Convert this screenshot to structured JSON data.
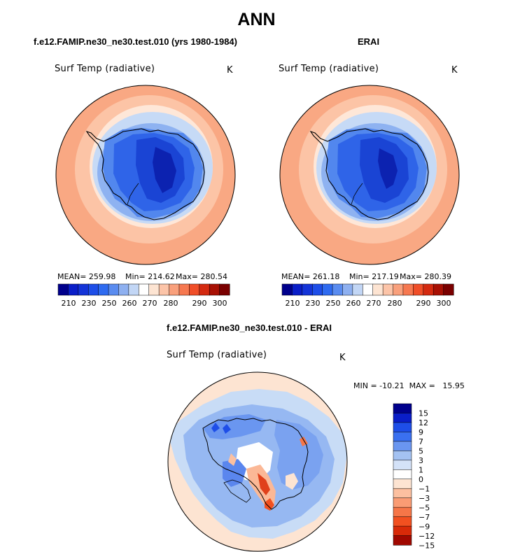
{
  "page": {
    "title": "ANN"
  },
  "chart_data": [
    {
      "type": "heatmap",
      "projection": "south-polar-stereographic",
      "case_title": "f.e12.FAMIP.ne30_ne30.test.010 (yrs 1980-1984)",
      "variable": "Surf Temp (radiative)",
      "units": "K",
      "stats": {
        "mean": "MEAN=  259.98",
        "min": "Min=  214.62",
        "max": "Max=  280.54"
      },
      "colorbar_colors": [
        "#00008c",
        "#0a1ec8",
        "#1434d8",
        "#1e4ee8",
        "#2f6bf0",
        "#5a8cf0",
        "#8eb0f0",
        "#c2d6f5",
        "#ffffff",
        "#fde4d2",
        "#fcc4a8",
        "#f9a07c",
        "#f67850",
        "#f04e28",
        "#d42a10",
        "#a81004",
        "#7a0000"
      ],
      "colorbar_ticks": [
        "210",
        "230",
        "250",
        "260",
        "270",
        "280",
        "290",
        "300"
      ],
      "stat_values": {
        "mean": 259.98,
        "min": 214.62,
        "max": 280.54
      }
    },
    {
      "type": "heatmap",
      "projection": "south-polar-stereographic",
      "case_title": "ERAI",
      "variable": "Surf Temp (radiative)",
      "units": "K",
      "stats": {
        "mean": "MEAN=  261.18",
        "min": "Min=  217.19",
        "max": "Max=  280.39"
      },
      "colorbar_colors": [
        "#00008c",
        "#0a1ec8",
        "#1434d8",
        "#1e4ee8",
        "#2f6bf0",
        "#5a8cf0",
        "#8eb0f0",
        "#c2d6f5",
        "#ffffff",
        "#fde4d2",
        "#fcc4a8",
        "#f9a07c",
        "#f67850",
        "#f04e28",
        "#d42a10",
        "#a81004",
        "#7a0000"
      ],
      "colorbar_ticks": [
        "210",
        "230",
        "250",
        "260",
        "270",
        "280",
        "290",
        "300"
      ],
      "stat_values": {
        "mean": 261.18,
        "min": 217.19,
        "max": 280.39
      }
    },
    {
      "type": "heatmap",
      "projection": "south-polar-stereographic",
      "case_title": "f.e12.FAMIP.ne30_ne30.test.010 - ERAI",
      "variable": "Surf Temp (radiative)",
      "units": "K",
      "minmax": "MIN = -10.21  MAX =   15.95",
      "stat_values": {
        "min": -10.21,
        "max": 15.95
      },
      "colorbar_colors": [
        "#00008c",
        "#0a1ec8",
        "#1e4ee8",
        "#3a70f0",
        "#6a96f0",
        "#a4c2f2",
        "#d4e2f8",
        "#ffffff",
        "#fde4d2",
        "#fcc0a0",
        "#fa9c74",
        "#f67648",
        "#f25020",
        "#d82a08",
        "#a00800"
      ],
      "colorbar_ticks": [
        "15",
        "12",
        "9",
        "7",
        "5",
        "3",
        "1",
        "0",
        "−1",
        "−3",
        "−5",
        "−7",
        "−9",
        "−12",
        "−15"
      ]
    }
  ]
}
